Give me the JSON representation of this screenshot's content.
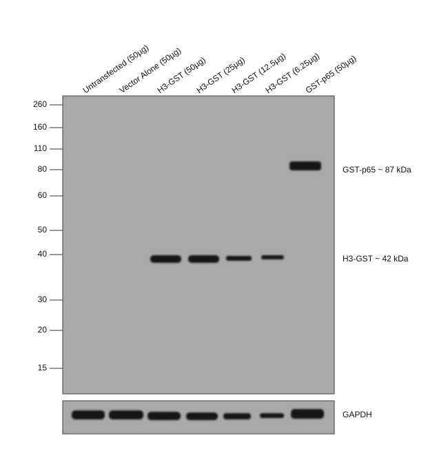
{
  "lanes": [
    "Untransfected (50µg)",
    "Vector Alone (50µg)",
    "H3-GST (50µg)",
    "H3-GST (25µg)",
    "H3-GST (12.5µg)",
    "H3-GST (6.25µg)",
    "GST-p65 (50µg)"
  ],
  "markers": [
    260,
    160,
    110,
    80,
    60,
    50,
    40,
    30,
    20,
    15
  ],
  "annotations": [
    "GST-p65 ~ 87 kDa",
    "H3-GST ~ 42 kDa"
  ],
  "loading_control": "GAPDH"
}
